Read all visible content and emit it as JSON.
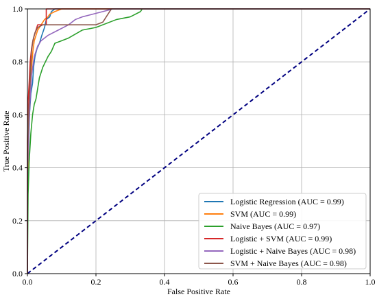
{
  "chart_data": {
    "type": "line",
    "title": "",
    "xlabel": "False Positive Rate",
    "ylabel": "True Positive Rate",
    "xlim": [
      0.0,
      1.0
    ],
    "ylim": [
      0.0,
      1.0
    ],
    "xticks": [
      "0.0",
      "0.2",
      "0.4",
      "0.6",
      "0.8",
      "1.0"
    ],
    "yticks": [
      "0.0",
      "0.2",
      "0.4",
      "0.6",
      "0.8",
      "1.0"
    ],
    "grid": true,
    "legend_position": "lower-right",
    "series": [
      {
        "name": "Logistic Regression (AUC = 0.99)",
        "color": "#1f77b4",
        "points": [
          [
            0,
            0
          ],
          [
            0,
            0.3
          ],
          [
            0.003,
            0.45
          ],
          [
            0.006,
            0.6
          ],
          [
            0.01,
            0.68
          ],
          [
            0.015,
            0.72
          ],
          [
            0.018,
            0.78
          ],
          [
            0.022,
            0.82
          ],
          [
            0.028,
            0.85
          ],
          [
            0.035,
            0.87
          ],
          [
            0.042,
            0.9
          ],
          [
            0.05,
            0.93
          ],
          [
            0.055,
            0.96
          ],
          [
            0.065,
            0.97
          ],
          [
            0.07,
            0.99
          ],
          [
            0.08,
            1.0
          ],
          [
            1.0,
            1.0
          ]
        ]
      },
      {
        "name": "SVM (AUC = 0.99)",
        "color": "#ff7f0e",
        "points": [
          [
            0,
            0
          ],
          [
            0,
            0.35
          ],
          [
            0.004,
            0.55
          ],
          [
            0.008,
            0.68
          ],
          [
            0.012,
            0.78
          ],
          [
            0.016,
            0.84
          ],
          [
            0.02,
            0.88
          ],
          [
            0.025,
            0.9
          ],
          [
            0.03,
            0.92
          ],
          [
            0.04,
            0.94
          ],
          [
            0.05,
            0.96
          ],
          [
            0.06,
            0.97
          ],
          [
            0.065,
            0.98
          ],
          [
            0.08,
            0.99
          ],
          [
            0.1,
            1.0
          ],
          [
            1.0,
            1.0
          ]
        ]
      },
      {
        "name": "Naive Bayes (AUC = 0.97)",
        "color": "#2ca02c",
        "points": [
          [
            0,
            0
          ],
          [
            0.002,
            0.3
          ],
          [
            0.005,
            0.42
          ],
          [
            0.01,
            0.53
          ],
          [
            0.015,
            0.6
          ],
          [
            0.02,
            0.64
          ],
          [
            0.025,
            0.66
          ],
          [
            0.03,
            0.7
          ],
          [
            0.035,
            0.74
          ],
          [
            0.045,
            0.78
          ],
          [
            0.06,
            0.82
          ],
          [
            0.07,
            0.84
          ],
          [
            0.08,
            0.87
          ],
          [
            0.1,
            0.88
          ],
          [
            0.12,
            0.89
          ],
          [
            0.16,
            0.92
          ],
          [
            0.2,
            0.93
          ],
          [
            0.26,
            0.96
          ],
          [
            0.3,
            0.97
          ],
          [
            0.33,
            0.99
          ],
          [
            0.335,
            1.0
          ],
          [
            1.0,
            1.0
          ]
        ]
      },
      {
        "name": "Logistic + SVM (AUC = 0.99)",
        "color": "#d62728",
        "points": [
          [
            0,
            0
          ],
          [
            0,
            0.5
          ],
          [
            0.002,
            0.65
          ],
          [
            0.005,
            0.72
          ],
          [
            0.008,
            0.8
          ],
          [
            0.012,
            0.85
          ],
          [
            0.016,
            0.88
          ],
          [
            0.02,
            0.9
          ],
          [
            0.025,
            0.92
          ],
          [
            0.03,
            0.94
          ],
          [
            0.055,
            0.94
          ],
          [
            0.055,
            1.0
          ],
          [
            1.0,
            1.0
          ]
        ]
      },
      {
        "name": "Logistic + Naive Bayes (AUC = 0.98)",
        "color": "#9467bd",
        "points": [
          [
            0,
            0
          ],
          [
            0,
            0.4
          ],
          [
            0.004,
            0.55
          ],
          [
            0.008,
            0.66
          ],
          [
            0.012,
            0.75
          ],
          [
            0.02,
            0.82
          ],
          [
            0.03,
            0.86
          ],
          [
            0.04,
            0.88
          ],
          [
            0.06,
            0.9
          ],
          [
            0.09,
            0.92
          ],
          [
            0.12,
            0.94
          ],
          [
            0.14,
            0.96
          ],
          [
            0.16,
            0.97
          ],
          [
            0.19,
            0.98
          ],
          [
            0.22,
            0.99
          ],
          [
            0.25,
            1.0
          ],
          [
            1.0,
            1.0
          ]
        ]
      },
      {
        "name": "SVM + Naive Bayes (AUC = 0.98)",
        "color": "#8c564b",
        "points": [
          [
            0,
            0
          ],
          [
            0,
            0.45
          ],
          [
            0.004,
            0.62
          ],
          [
            0.008,
            0.74
          ],
          [
            0.012,
            0.84
          ],
          [
            0.016,
            0.88
          ],
          [
            0.022,
            0.91
          ],
          [
            0.03,
            0.93
          ],
          [
            0.045,
            0.94
          ],
          [
            0.08,
            0.94
          ],
          [
            0.1,
            0.94
          ],
          [
            0.2,
            0.94
          ],
          [
            0.22,
            0.95
          ],
          [
            0.23,
            0.97
          ],
          [
            0.24,
            0.99
          ],
          [
            0.245,
            1.0
          ],
          [
            1.0,
            1.0
          ]
        ]
      }
    ],
    "reference_line": {
      "style": "dashed",
      "color": "#000080",
      "points": [
        [
          0,
          0
        ],
        [
          1,
          1
        ]
      ]
    }
  }
}
